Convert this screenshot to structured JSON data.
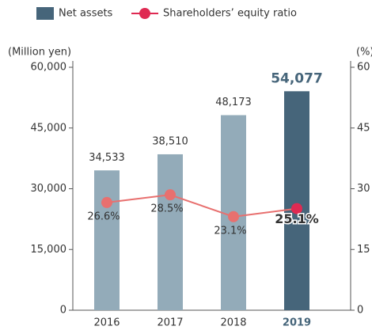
{
  "chart_data": {
    "type": "bar",
    "categories": [
      "2016",
      "2017",
      "2018",
      "2019"
    ],
    "y_axis_label": "(Million yen)",
    "y2_axis_label": "(%)",
    "ylim": [
      0,
      60000
    ],
    "yticks": [
      0,
      {
        "value": 15000,
        "label": "15,000"
      },
      {
        "value": 30000,
        "label": "30,000"
      },
      {
        "value": 45000,
        "label": "45,000"
      },
      {
        "value": 60000,
        "label": "60,000"
      }
    ],
    "y2lim": [
      0,
      60
    ],
    "y2ticks": [
      0,
      15,
      30,
      45,
      60
    ],
    "grid": false,
    "series": [
      {
        "name": "Net assets",
        "type": "bar",
        "color": "#46657a",
        "colors": [
          "#93abb9",
          "#93abb9",
          "#93abb9",
          "#46657a"
        ],
        "values": [
          34533,
          38510,
          48173,
          54077
        ],
        "value_labels": [
          "34,533",
          "38,510",
          "48,173",
          "54,077"
        ]
      },
      {
        "name": "Shareholders’ equity ratio",
        "type": "line",
        "axis": "y2",
        "color": "#e8706f",
        "point_colors": [
          "#e8706f",
          "#e8706f",
          "#e8706f",
          "#df2a52"
        ],
        "values": [
          26.6,
          28.5,
          23.1,
          25.1
        ],
        "value_labels": [
          "26.6%",
          "28.5%",
          "23.1%",
          "25.1%"
        ]
      }
    ]
  }
}
